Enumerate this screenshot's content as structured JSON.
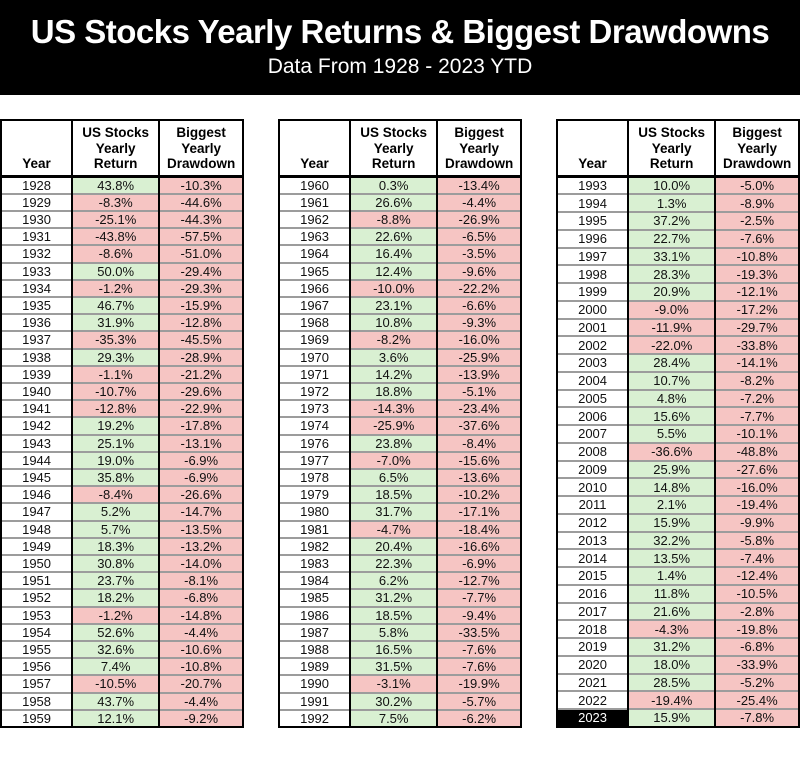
{
  "chart_data": {
    "type": "table",
    "title": "US Stocks Yearly Returns & Biggest Drawdowns",
    "subtitle": "Data From 1928 - 2023 YTD",
    "columns": [
      "Year",
      "US Stocks\nYearly\nReturn",
      "Biggest\nYearly\nDrawdown"
    ],
    "colors": {
      "banner_bg": "#000000",
      "banner_text": "#ffffff",
      "positive_cell": "#d9f0d2",
      "negative_cell": "#f6c5c3",
      "highlight_year_bg": "#000000",
      "highlight_year_text": "#ffffff"
    },
    "tables": [
      {
        "name": "1928-1959",
        "rows": [
          [
            "1928",
            "43.8%",
            "-10.3%"
          ],
          [
            "1929",
            "-8.3%",
            "-44.6%"
          ],
          [
            "1930",
            "-25.1%",
            "-44.3%"
          ],
          [
            "1931",
            "-43.8%",
            "-57.5%"
          ],
          [
            "1932",
            "-8.6%",
            "-51.0%"
          ],
          [
            "1933",
            "50.0%",
            "-29.4%"
          ],
          [
            "1934",
            "-1.2%",
            "-29.3%"
          ],
          [
            "1935",
            "46.7%",
            "-15.9%"
          ],
          [
            "1936",
            "31.9%",
            "-12.8%"
          ],
          [
            "1937",
            "-35.3%",
            "-45.5%"
          ],
          [
            "1938",
            "29.3%",
            "-28.9%"
          ],
          [
            "1939",
            "-1.1%",
            "-21.2%"
          ],
          [
            "1940",
            "-10.7%",
            "-29.6%"
          ],
          [
            "1941",
            "-12.8%",
            "-22.9%"
          ],
          [
            "1942",
            "19.2%",
            "-17.8%"
          ],
          [
            "1943",
            "25.1%",
            "-13.1%"
          ],
          [
            "1944",
            "19.0%",
            "-6.9%"
          ],
          [
            "1945",
            "35.8%",
            "-6.9%"
          ],
          [
            "1946",
            "-8.4%",
            "-26.6%"
          ],
          [
            "1947",
            "5.2%",
            "-14.7%"
          ],
          [
            "1948",
            "5.7%",
            "-13.5%"
          ],
          [
            "1949",
            "18.3%",
            "-13.2%"
          ],
          [
            "1950",
            "30.8%",
            "-14.0%"
          ],
          [
            "1951",
            "23.7%",
            "-8.1%"
          ],
          [
            "1952",
            "18.2%",
            "-6.8%"
          ],
          [
            "1953",
            "-1.2%",
            "-14.8%"
          ],
          [
            "1954",
            "52.6%",
            "-4.4%"
          ],
          [
            "1955",
            "32.6%",
            "-10.6%"
          ],
          [
            "1956",
            "7.4%",
            "-10.8%"
          ],
          [
            "1957",
            "-10.5%",
            "-20.7%"
          ],
          [
            "1958",
            "43.7%",
            "-4.4%"
          ],
          [
            "1959",
            "12.1%",
            "-9.2%"
          ]
        ]
      },
      {
        "name": "1960-1992",
        "rows": [
          [
            "1960",
            "0.3%",
            "-13.4%"
          ],
          [
            "1961",
            "26.6%",
            "-4.4%"
          ],
          [
            "1962",
            "-8.8%",
            "-26.9%"
          ],
          [
            "1963",
            "22.6%",
            "-6.5%"
          ],
          [
            "1964",
            "16.4%",
            "-3.5%"
          ],
          [
            "1965",
            "12.4%",
            "-9.6%"
          ],
          [
            "1966",
            "-10.0%",
            "-22.2%"
          ],
          [
            "1967",
            "23.1%",
            "-6.6%"
          ],
          [
            "1968",
            "10.8%",
            "-9.3%"
          ],
          [
            "1969",
            "-8.2%",
            "-16.0%"
          ],
          [
            "1970",
            "3.6%",
            "-25.9%"
          ],
          [
            "1971",
            "14.2%",
            "-13.9%"
          ],
          [
            "1972",
            "18.8%",
            "-5.1%"
          ],
          [
            "1973",
            "-14.3%",
            "-23.4%"
          ],
          [
            "1974",
            "-25.9%",
            "-37.6%"
          ],
          [
            "1976",
            "23.8%",
            "-8.4%"
          ],
          [
            "1977",
            "-7.0%",
            "-15.6%"
          ],
          [
            "1978",
            "6.5%",
            "-13.6%"
          ],
          [
            "1979",
            "18.5%",
            "-10.2%"
          ],
          [
            "1980",
            "31.7%",
            "-17.1%"
          ],
          [
            "1981",
            "-4.7%",
            "-18.4%"
          ],
          [
            "1982",
            "20.4%",
            "-16.6%"
          ],
          [
            "1983",
            "22.3%",
            "-6.9%"
          ],
          [
            "1984",
            "6.2%",
            "-12.7%"
          ],
          [
            "1985",
            "31.2%",
            "-7.7%"
          ],
          [
            "1986",
            "18.5%",
            "-9.4%"
          ],
          [
            "1987",
            "5.8%",
            "-33.5%"
          ],
          [
            "1988",
            "16.5%",
            "-7.6%"
          ],
          [
            "1989",
            "31.5%",
            "-7.6%"
          ],
          [
            "1990",
            "-3.1%",
            "-19.9%"
          ],
          [
            "1991",
            "30.2%",
            "-5.7%"
          ],
          [
            "1992",
            "7.5%",
            "-6.2%"
          ]
        ]
      },
      {
        "name": "1993-2023",
        "highlight_years": [
          "2023"
        ],
        "rows": [
          [
            "1993",
            "10.0%",
            "-5.0%"
          ],
          [
            "1994",
            "1.3%",
            "-8.9%"
          ],
          [
            "1995",
            "37.2%",
            "-2.5%"
          ],
          [
            "1996",
            "22.7%",
            "-7.6%"
          ],
          [
            "1997",
            "33.1%",
            "-10.8%"
          ],
          [
            "1998",
            "28.3%",
            "-19.3%"
          ],
          [
            "1999",
            "20.9%",
            "-12.1%"
          ],
          [
            "2000",
            "-9.0%",
            "-17.2%"
          ],
          [
            "2001",
            "-11.9%",
            "-29.7%"
          ],
          [
            "2002",
            "-22.0%",
            "-33.8%"
          ],
          [
            "2003",
            "28.4%",
            "-14.1%"
          ],
          [
            "2004",
            "10.7%",
            "-8.2%"
          ],
          [
            "2005",
            "4.8%",
            "-7.2%"
          ],
          [
            "2006",
            "15.6%",
            "-7.7%"
          ],
          [
            "2007",
            "5.5%",
            "-10.1%"
          ],
          [
            "2008",
            "-36.6%",
            "-48.8%"
          ],
          [
            "2009",
            "25.9%",
            "-27.6%"
          ],
          [
            "2010",
            "14.8%",
            "-16.0%"
          ],
          [
            "2011",
            "2.1%",
            "-19.4%"
          ],
          [
            "2012",
            "15.9%",
            "-9.9%"
          ],
          [
            "2013",
            "32.2%",
            "-5.8%"
          ],
          [
            "2014",
            "13.5%",
            "-7.4%"
          ],
          [
            "2015",
            "1.4%",
            "-12.4%"
          ],
          [
            "2016",
            "11.8%",
            "-10.5%"
          ],
          [
            "2017",
            "21.6%",
            "-2.8%"
          ],
          [
            "2018",
            "-4.3%",
            "-19.8%"
          ],
          [
            "2019",
            "31.2%",
            "-6.8%"
          ],
          [
            "2020",
            "18.0%",
            "-33.9%"
          ],
          [
            "2021",
            "28.5%",
            "-5.2%"
          ],
          [
            "2022",
            "-19.4%",
            "-25.4%"
          ],
          [
            "2023",
            "15.9%",
            "-7.8%"
          ]
        ]
      }
    ]
  }
}
